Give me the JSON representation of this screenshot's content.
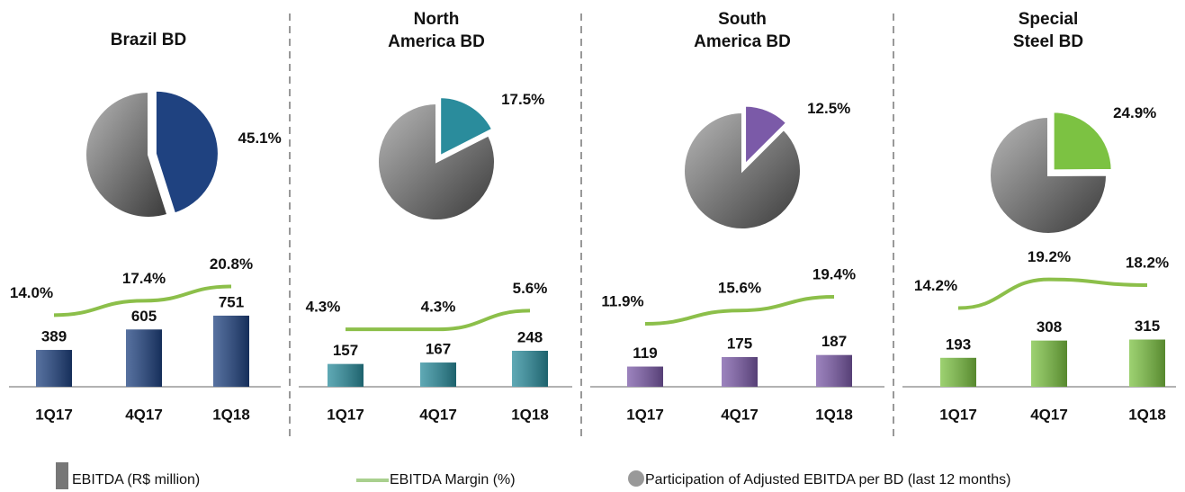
{
  "chart_data": [
    {
      "type": "combo",
      "title": [
        "Brazil BD"
      ],
      "categories": [
        "1Q17",
        "4Q17",
        "1Q18"
      ],
      "pie": {
        "values": [
          45.1
        ],
        "value_labels": [
          "45.1%"
        ]
      },
      "color": "#1f4280",
      "bars": {
        "values": [
          389,
          605,
          751
        ]
      },
      "ylim": [
        0,
        950
      ],
      "line": {
        "values": [
          14.0,
          17.4,
          20.8
        ],
        "value_labels": [
          "14.0%",
          "17.4%",
          "20.8%"
        ],
        "color": "#8cbf4a"
      },
      "y2lim": [
        -3,
        29
      ]
    },
    {
      "type": "combo",
      "title": [
        "North",
        "America BD"
      ],
      "categories": [
        "1Q17",
        "4Q17",
        "1Q18"
      ],
      "pie": {
        "values": [
          17.5
        ],
        "value_labels": [
          "17.5%"
        ]
      },
      "color": "#2a8c9c",
      "bars": {
        "values": [
          157,
          167,
          248
        ]
      },
      "ylim": [
        0,
        620
      ],
      "line": {
        "values": [
          4.3,
          4.3,
          5.6
        ],
        "value_labels": [
          "4.3%",
          "4.3%",
          "5.6%"
        ],
        "color": "#8cbf4a"
      },
      "y2lim": [
        0.3,
        9.7
      ]
    },
    {
      "type": "combo",
      "title": [
        "South",
        "America BD"
      ],
      "categories": [
        "1Q17",
        "4Q17",
        "1Q18"
      ],
      "pie": {
        "values": [
          12.5
        ],
        "value_labels": [
          "12.5%"
        ]
      },
      "color": "#7b5aa8",
      "bars": {
        "values": [
          119,
          175,
          187
        ]
      },
      "ylim": [
        0,
        530
      ],
      "line": {
        "values": [
          11.9,
          15.6,
          19.4
        ],
        "value_labels": [
          "11.9%",
          "15.6%",
          "19.4%"
        ],
        "color": "#8cbf4a"
      },
      "y2lim": [
        -5.6,
        31.9
      ]
    },
    {
      "type": "combo",
      "title": [
        "Special",
        "Steel BD"
      ],
      "categories": [
        "1Q17",
        "4Q17",
        "1Q18"
      ],
      "pie": {
        "values": [
          24.9
        ],
        "value_labels": [
          "24.9%"
        ]
      },
      "color": "#7cc242",
      "bars": {
        "values": [
          193,
          308,
          315
        ]
      },
      "ylim": [
        0,
        600
      ],
      "line": {
        "values": [
          14.2,
          19.2,
          18.2
        ],
        "value_labels": [
          "14.2%",
          "19.2%",
          "18.2%"
        ],
        "color": "#8cbf4a"
      },
      "y2lim": [
        0.5,
        24
      ]
    }
  ],
  "legend": {
    "bar": "EBITDA (R$ million)",
    "line": "EBITDA Margin (%)",
    "pie": "Participation of Adjusted EBITDA per BD (last 12 months)"
  }
}
